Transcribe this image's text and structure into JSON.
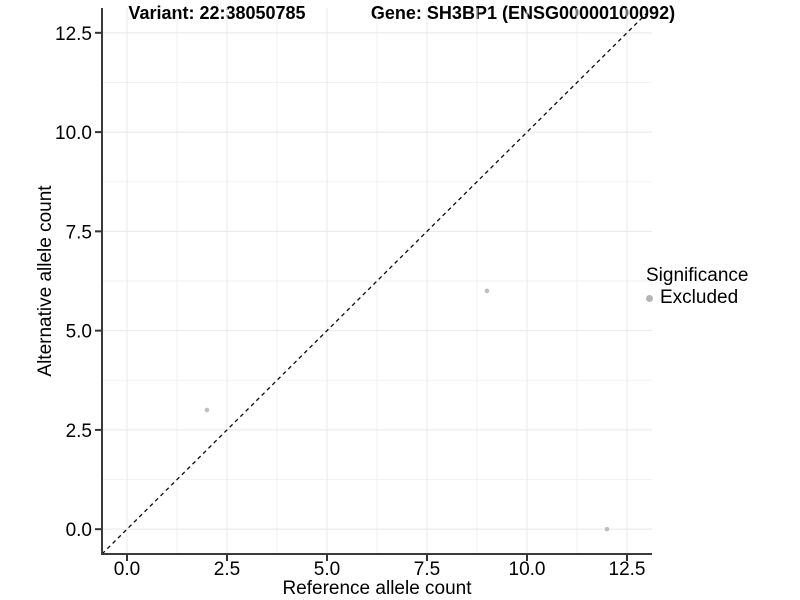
{
  "chart_data": {
    "type": "scatter",
    "titles": {
      "left": "Variant: 22:38050785",
      "right": "Gene: SH3BP1 (ENSG00000100092)"
    },
    "xlabel": "Reference allele count",
    "ylabel": "Alternative allele count",
    "xlim": [
      -0.625,
      13.125
    ],
    "ylim": [
      -0.625,
      13.125
    ],
    "x_ticks": [
      0,
      2.5,
      5,
      7.5,
      10,
      12.5
    ],
    "x_tick_labels": [
      "0.0",
      "2.5",
      "5.0",
      "7.5",
      "10.0",
      "12.5"
    ],
    "y_ticks": [
      0,
      2.5,
      5,
      7.5,
      10,
      12.5
    ],
    "y_tick_labels": [
      "0.0",
      "2.5",
      "5.0",
      "7.5",
      "10.0",
      "12.5"
    ],
    "minor_ticks": [
      1.25,
      3.75,
      6.25,
      8.75,
      11.25
    ],
    "grid": "major+minor",
    "series": [
      {
        "name": "Excluded",
        "color": "#bebebe",
        "point_radius": 2.3,
        "points": [
          [
            2,
            3
          ],
          [
            9,
            6
          ],
          [
            12,
            0
          ]
        ]
      }
    ],
    "identity_line": {
      "style": "dashed",
      "color": "#0a0a0a"
    },
    "legend": {
      "position": "right",
      "title": "Significance",
      "items": [
        {
          "label": "Excluded",
          "color": "#b5b5b5"
        }
      ]
    },
    "colors": {
      "background": "#ffffff",
      "axis_line": "#3a3a3a",
      "tick_mark": "#333333",
      "grid_major": "#e8e8e8",
      "grid_minor": "#f2f2f2",
      "text": "#000000"
    }
  }
}
